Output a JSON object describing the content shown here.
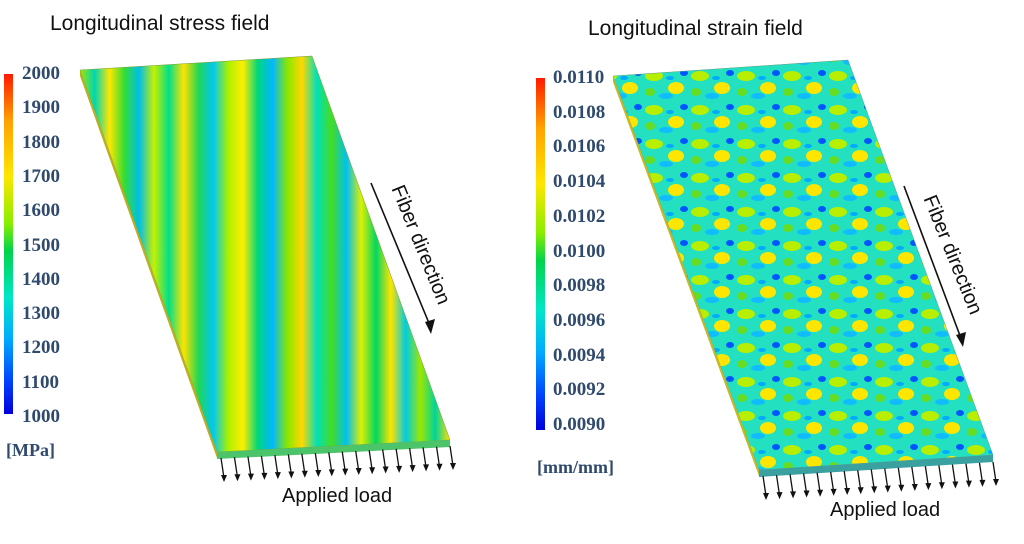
{
  "left_panel": {
    "title": "Longitudinal stress field",
    "colorbar_ticks": [
      "2000",
      "1900",
      "1800",
      "1700",
      "1600",
      "1500",
      "1400",
      "1300",
      "1200",
      "1100",
      "1000"
    ],
    "unit": "[MPa]",
    "fiber_label": "Fiber direction",
    "load_label": "Applied load"
  },
  "right_panel": {
    "title": "Longitudinal strain field",
    "colorbar_ticks": [
      "0.0110",
      "0.0108",
      "0.0106",
      "0.0104",
      "0.0102",
      "0.0100",
      "0.0098",
      "0.0096",
      "0.0094",
      "0.0092",
      "0.0090"
    ],
    "unit": "[mm/mm]",
    "fiber_label": "Fiber direction",
    "load_label": "Applied load"
  },
  "colors": {
    "label_text": "#2f4a6d",
    "colormap": [
      "#0000dd",
      "#0044ff",
      "#00aaff",
      "#00e6c8",
      "#00d44a",
      "#88ee00",
      "#ffe600",
      "#ffa200",
      "#ff1a00"
    ]
  }
}
